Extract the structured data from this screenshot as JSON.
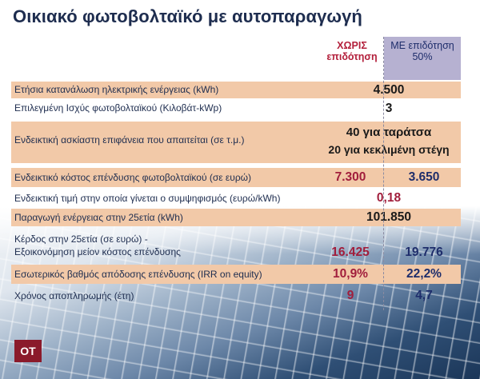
{
  "title": "Οικιακό φωτοβολταϊκό με αυτοπαραγωγή",
  "headers": {
    "without": "ΧΩΡΙΣ επιδότηση",
    "with": "ΜΕ επιδότηση 50%"
  },
  "rows": [
    {
      "label": "Ετήσια κατανάλωση ηλεκτρικής ενέργειας (kWh)",
      "value": "4.500"
    },
    {
      "label": "Επιλεγμένη Ισχύς φωτοβολταϊκού (Κιλοβάτ-kWp)",
      "value": "3"
    },
    {
      "label": "Ενδεικτική ασκίαστη επιφάνεια που απαιτείται (σε τ.μ.)",
      "value_line1": "40 για ταράτσα",
      "value_line2": "20 για κεκλιμένη στέγη"
    },
    {
      "label": "Ενδεικτικό κόστος επένδυσης φωτοβολταϊκού (σε ευρώ)",
      "without": "7.300",
      "with": "3.650"
    },
    {
      "label": "Ενδεικτική τιμή στην οποία γίνεται ο συμψηφισμός (ευρώ/kWh)",
      "value": "0,18"
    },
    {
      "label": "Παραγωγή ενέργειας στην 25ετία (kWh)",
      "value": "101.850"
    },
    {
      "label_line1": "Κέρδος στην 25ετία (σε ευρώ) -",
      "label_line2": "Εξοικονόμηση μείον κόστος επένδυσης",
      "without": "16.425",
      "with": "19.776"
    },
    {
      "label": "Εσωτερικός βαθμός απόδοσης επένδυσης (IRR on equity)",
      "without": "10,9%",
      "with": "22,2%"
    },
    {
      "label": "Χρόνος αποπληρωμής (έτη)",
      "without": "9",
      "with": "4,7"
    }
  ],
  "logo": "ΟΤ"
}
